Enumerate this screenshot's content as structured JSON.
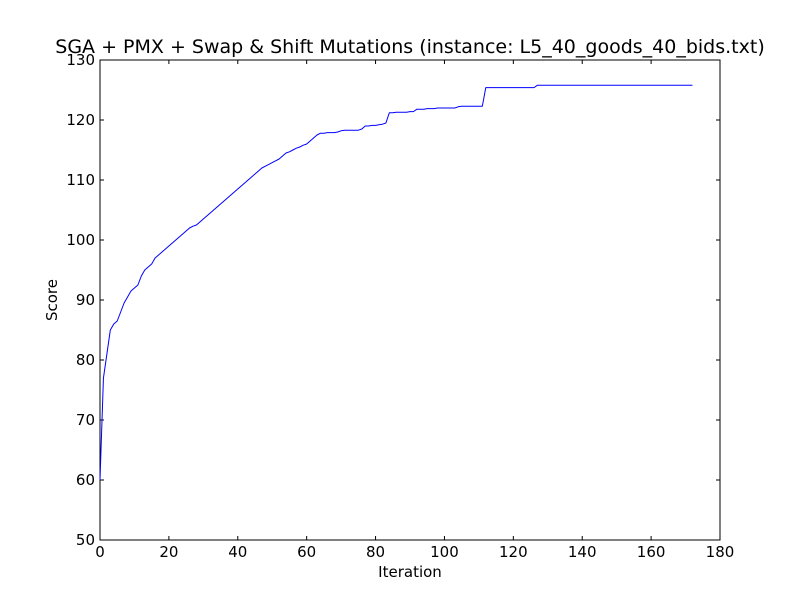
{
  "chart_data": {
    "type": "line",
    "title": "SGA + PMX + Swap & Shift Mutations (instance: L5_40_goods_40_bids.txt)",
    "xlabel": "Iteration",
    "ylabel": "Score",
    "xlim": [
      0,
      180
    ],
    "ylim": [
      50,
      130
    ],
    "xticks": [
      0,
      20,
      40,
      60,
      80,
      100,
      120,
      140,
      160,
      180
    ],
    "yticks": [
      50,
      60,
      70,
      80,
      90,
      100,
      110,
      120,
      130
    ],
    "grid": false,
    "legend": "none",
    "series": [
      {
        "color": "#0000ff",
        "x": [
          0,
          1,
          2,
          3,
          4,
          5,
          6,
          7,
          8,
          9,
          10,
          11,
          12,
          13,
          14,
          15,
          16,
          17,
          18,
          19,
          20,
          21,
          22,
          23,
          24,
          25,
          26,
          27,
          28,
          29,
          30,
          31,
          32,
          33,
          34,
          35,
          36,
          37,
          38,
          39,
          40,
          41,
          42,
          43,
          44,
          45,
          46,
          47,
          48,
          49,
          50,
          51,
          52,
          53,
          54,
          55,
          56,
          57,
          58,
          59,
          60,
          61,
          62,
          63,
          64,
          65,
          66,
          67,
          68,
          69,
          70,
          71,
          72,
          73,
          74,
          75,
          76,
          77,
          78,
          79,
          80,
          81,
          82,
          83,
          84,
          85,
          86,
          87,
          88,
          89,
          90,
          91,
          92,
          93,
          94,
          95,
          96,
          97,
          98,
          99,
          100,
          101,
          102,
          103,
          104,
          105,
          106,
          107,
          108,
          109,
          110,
          111,
          112,
          113,
          114,
          115,
          116,
          117,
          118,
          119,
          120,
          121,
          122,
          123,
          124,
          125,
          126,
          127,
          128,
          172
        ],
        "y": [
          60.0,
          77.0,
          81.0,
          85.0,
          86.0,
          86.5,
          88.0,
          89.5,
          90.5,
          91.5,
          92.0,
          92.5,
          94.0,
          95.0,
          95.5,
          96.0,
          97.0,
          97.5,
          98.0,
          98.5,
          99.0,
          99.5,
          100.0,
          100.5,
          101.0,
          101.5,
          102.0,
          102.3,
          102.5,
          103.0,
          103.5,
          104.0,
          104.5,
          105.0,
          105.5,
          106.0,
          106.5,
          107.0,
          107.5,
          108.0,
          108.5,
          109.0,
          109.5,
          110.0,
          110.5,
          111.0,
          111.5,
          112.0,
          112.3,
          112.6,
          112.9,
          113.2,
          113.5,
          114.0,
          114.5,
          114.7,
          115.0,
          115.3,
          115.5,
          115.8,
          116.0,
          116.5,
          117.0,
          117.5,
          117.8,
          117.8,
          117.9,
          117.9,
          117.9,
          118.0,
          118.2,
          118.3,
          118.3,
          118.3,
          118.3,
          118.3,
          118.5,
          119.0,
          119.0,
          119.1,
          119.1,
          119.2,
          119.3,
          119.5,
          121.2,
          121.2,
          121.3,
          121.3,
          121.3,
          121.3,
          121.4,
          121.4,
          121.8,
          121.8,
          121.8,
          121.9,
          121.9,
          121.9,
          122.0,
          122.0,
          122.0,
          122.0,
          122.0,
          122.0,
          122.2,
          122.3,
          122.3,
          122.3,
          122.3,
          122.3,
          122.3,
          122.3,
          125.4,
          125.4,
          125.4,
          125.4,
          125.4,
          125.4,
          125.4,
          125.4,
          125.4,
          125.4,
          125.4,
          125.4,
          125.4,
          125.4,
          125.4,
          125.8,
          125.8,
          125.8
        ]
      }
    ]
  }
}
